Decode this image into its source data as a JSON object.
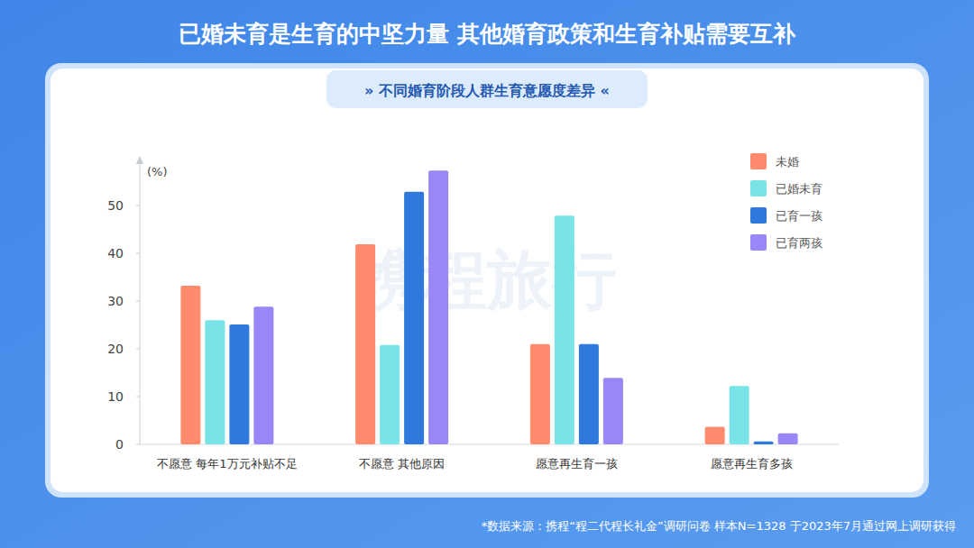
{
  "chart_data": {
    "type": "bar",
    "title": "已婚未育是生育的中坚力量 其他婚育政策和生育补贴需要互补",
    "subtitle": "»  不同婚育阶段人群生育意愿度差异  «",
    "y_label": "(%)",
    "watermark": "携程旅行",
    "source": "*数据来源：携程“程二代程长礼金”调研问卷   样本N=1328 于2023年7月通过网上调研获得",
    "categories": [
      "不愿意 每年1万元补贴不足",
      "不愿意 其他原因",
      "愿意再生育一孩",
      "愿意再生育多孩"
    ],
    "series": [
      {
        "name": "未婚",
        "color": "#ff8a6c",
        "values": [
          33.2,
          41.9,
          21,
          3.7
        ]
      },
      {
        "name": "已婚未育",
        "color": "#78e4e8",
        "values": [
          26,
          20.8,
          47.9,
          12.2
        ]
      },
      {
        "name": "已育一孩",
        "color": "#2f78dc",
        "values": [
          25.1,
          52.9,
          21,
          0.6
        ]
      },
      {
        "name": "已育两孩",
        "color": "#9a86f6",
        "values": [
          28.8,
          57.3,
          13.9,
          2.3
        ]
      }
    ],
    "ylim": [
      0,
      60
    ],
    "yticks": [
      0,
      10,
      20,
      30,
      40,
      50
    ],
    "grid": false,
    "legend": "top-right"
  }
}
